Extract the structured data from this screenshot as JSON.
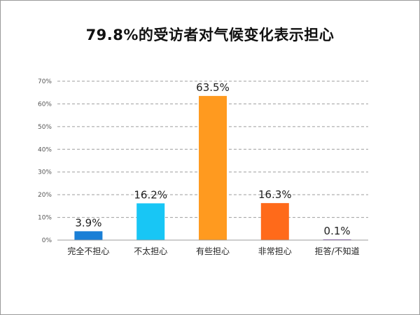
{
  "chart_data": {
    "type": "bar",
    "title": "79.8%的受访者对气候变化表示担心",
    "xlabel": "",
    "ylabel": "",
    "categories": [
      "完全不担心",
      "不太担心",
      "有些担心",
      "非常担心",
      "拒答/不知道"
    ],
    "values": [
      3.9,
      16.2,
      63.5,
      16.3,
      0.1
    ],
    "value_labels": [
      "3.9%",
      "16.2%",
      "63.5%",
      "16.3%",
      "0.1%"
    ],
    "colors": [
      "#1a7fd6",
      "#18c6f5",
      "#ff9a1f",
      "#ff6a1a",
      "#7a3fb0"
    ],
    "ylim": [
      0,
      70
    ],
    "yticks": [
      0,
      10,
      20,
      30,
      40,
      50,
      60,
      70
    ],
    "ytick_labels": [
      "0%",
      "10%",
      "20%",
      "30%",
      "40%",
      "50%",
      "60%",
      "70%"
    ],
    "grid": true,
    "grid_style": "dashed",
    "legend": "none"
  }
}
